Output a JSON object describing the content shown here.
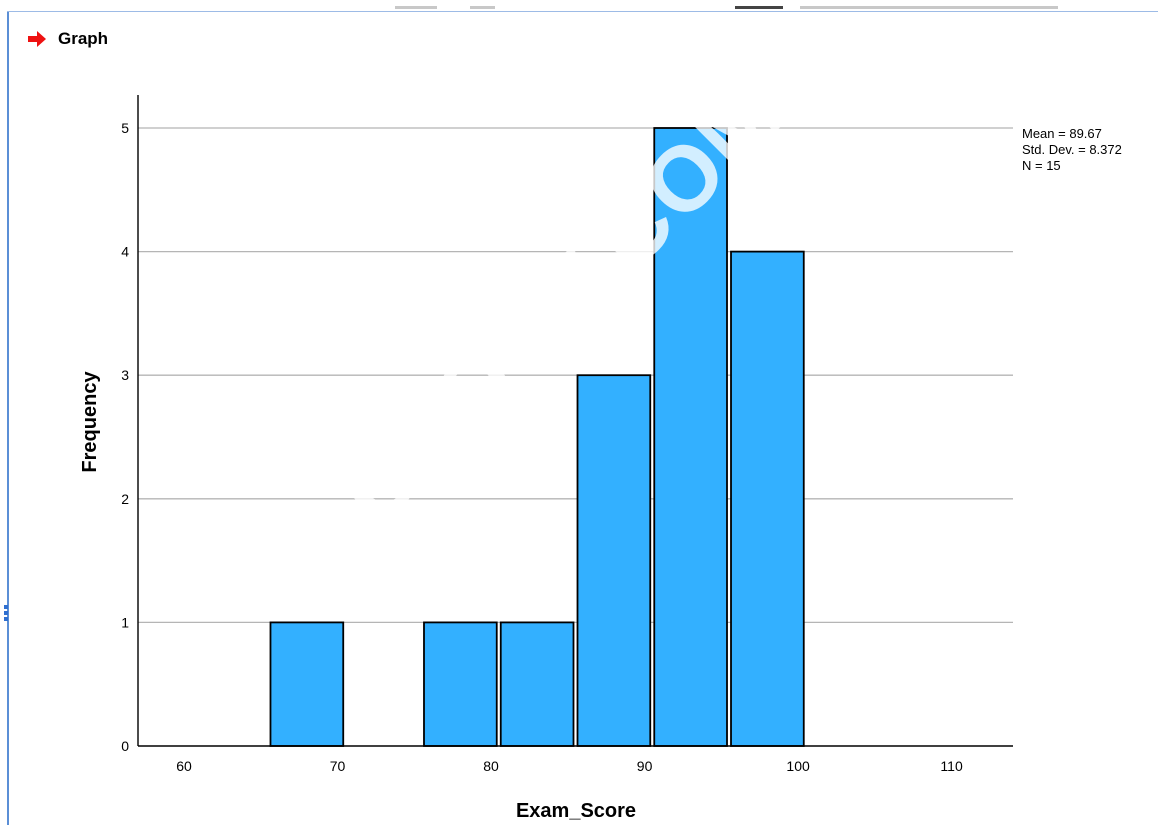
{
  "window": {
    "heading": "Graph",
    "heading_icon": "red-right-arrow-icon"
  },
  "watermark": "OLOGY.COM",
  "chart_data": {
    "type": "histogram",
    "title": "",
    "xlabel": "Exam_Score",
    "ylabel": "Frequency",
    "xlim": [
      57,
      114
    ],
    "ylim": [
      0,
      5.3
    ],
    "x_ticks": [
      60,
      70,
      80,
      90,
      100,
      110
    ],
    "y_ticks": [
      0,
      1,
      2,
      3,
      4,
      5
    ],
    "bin_width": 5,
    "bins": [
      {
        "start": 65.5,
        "end": 70.5,
        "count": 1
      },
      {
        "start": 75.5,
        "end": 80.5,
        "count": 1
      },
      {
        "start": 80.5,
        "end": 85.5,
        "count": 1
      },
      {
        "start": 85.5,
        "end": 90.5,
        "count": 3
      },
      {
        "start": 90.5,
        "end": 95.5,
        "count": 5
      },
      {
        "start": 95.5,
        "end": 100.5,
        "count": 4
      }
    ],
    "grid": "horizontal",
    "bar_color": "#33b0ff",
    "stats": {
      "mean_label": "Mean = 89.67",
      "sd_label": "Std. Dev. = 8.372",
      "n_label": "N = 15"
    }
  }
}
